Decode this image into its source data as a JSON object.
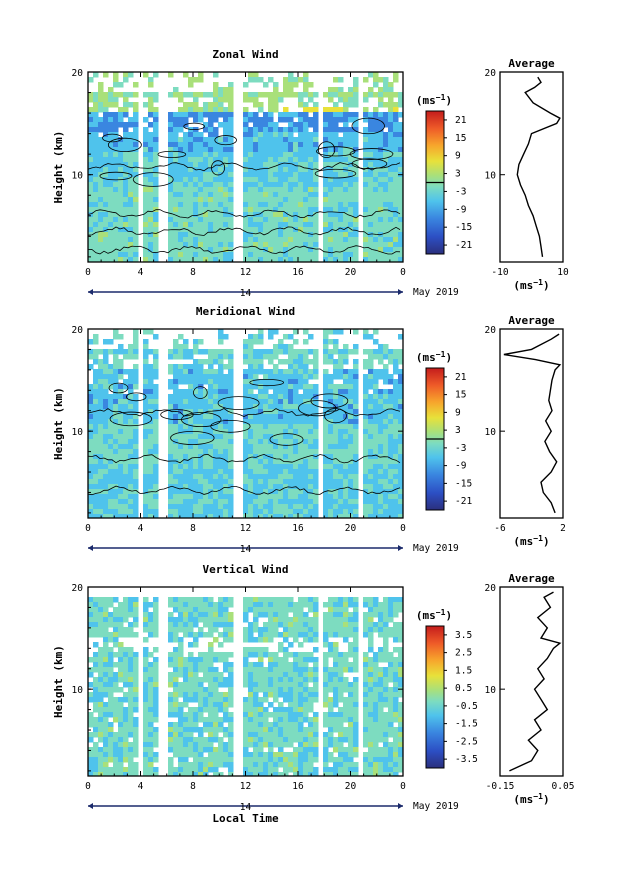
{
  "chart_data": [
    {
      "type": "heatmap",
      "title": "Zonal Wind",
      "ylabel": "Height (km)",
      "x_ticks": [
        "0",
        "4",
        "8",
        "12",
        "16",
        "20",
        "0"
      ],
      "y_ticks": [
        "20",
        "10"
      ],
      "xlim": [
        0,
        24
      ],
      "ylim": [
        1.5,
        20
      ],
      "date_day": "14",
      "date_label": "May 2019",
      "colorbar": {
        "unit": "(ms",
        "unit_exp": "−1",
        "unit_close": ")",
        "min": -24,
        "max": 24,
        "tick_labels": [
          "21",
          "15",
          "9",
          "3",
          "-3",
          "-9",
          "-15",
          "-21"
        ],
        "contour_level": 0
      },
      "data_gaps_local_time": [
        [
          3.7,
          4.0
        ],
        [
          5.2,
          5.9
        ],
        [
          11.0,
          11.5
        ],
        [
          17.5,
          17.8
        ],
        [
          20.3,
          20.6
        ]
      ],
      "average_profile": {
        "title": "Average",
        "x_ticks": [
          "-10",
          "10"
        ],
        "xlim": [
          -10,
          10
        ],
        "xlabel": "(ms",
        "xlabel_exp": "−1",
        "xlabel_close": ")",
        "y_ticks": [
          "20",
          "10"
        ],
        "ylim": [
          1.5,
          20
        ],
        "height": [
          2,
          3,
          4,
          5,
          6,
          7,
          8,
          9,
          10,
          11,
          12,
          13,
          14,
          15,
          15.5,
          16,
          17,
          18,
          18.5,
          19,
          19.5
        ],
        "wind": [
          3.5,
          3,
          2.5,
          1.5,
          0.5,
          -1,
          -2,
          -3.5,
          -4.5,
          -4,
          -2.5,
          -1,
          0,
          8,
          9,
          6,
          0.5,
          -2,
          1,
          3,
          2
        ]
      }
    },
    {
      "type": "heatmap",
      "title": "Meridional Wind",
      "ylabel": "Height (km)",
      "x_ticks": [
        "0",
        "4",
        "8",
        "12",
        "16",
        "20",
        "0"
      ],
      "y_ticks": [
        "20",
        "10"
      ],
      "xlim": [
        0,
        24
      ],
      "ylim": [
        1.5,
        20
      ],
      "date_day": "14",
      "date_label": "May 2019",
      "colorbar": {
        "unit": "(ms",
        "unit_exp": "−1",
        "unit_close": ")",
        "min": -24,
        "max": 24,
        "tick_labels": [
          "21",
          "15",
          "9",
          "3",
          "-3",
          "-9",
          "-15",
          "-21"
        ],
        "contour_level": 0
      },
      "data_gaps_local_time": [
        [
          3.7,
          4.0
        ],
        [
          5.2,
          5.9
        ],
        [
          11.0,
          11.5
        ],
        [
          17.5,
          17.8
        ],
        [
          20.3,
          20.6
        ]
      ],
      "average_profile": {
        "title": "Average",
        "x_ticks": [
          "-6",
          "2"
        ],
        "xlim": [
          -6,
          2
        ],
        "xlabel": "(ms",
        "xlabel_exp": "−1",
        "xlabel_close": ")",
        "y_ticks": [
          "20",
          "10"
        ],
        "ylim": [
          1.5,
          20
        ],
        "height": [
          2,
          3,
          4,
          5,
          6,
          7,
          8,
          9,
          10,
          11,
          12,
          13,
          14,
          15,
          16,
          16.5,
          17,
          17.5,
          18,
          19,
          19.5
        ],
        "wind": [
          1.0,
          0.5,
          -0.5,
          -0.8,
          0.5,
          1.2,
          0.3,
          -0.3,
          0.5,
          -0.2,
          0.6,
          0.2,
          0.4,
          0.6,
          1.0,
          1.6,
          -1.5,
          -5.5,
          -2,
          0.5,
          1.5
        ]
      }
    },
    {
      "type": "heatmap",
      "title": "Vertical Wind",
      "ylabel": "Height (km)",
      "xlabel": "Local Time",
      "x_ticks": [
        "0",
        "4",
        "8",
        "12",
        "16",
        "20",
        "0"
      ],
      "y_ticks": [
        "20",
        "10"
      ],
      "xlim": [
        0,
        24
      ],
      "ylim": [
        1.5,
        20
      ],
      "date_day": "14",
      "date_label": "May 2019",
      "colorbar": {
        "unit": "(ms",
        "unit_exp": "−1",
        "unit_close": ")",
        "min": -4,
        "max": 4,
        "tick_labels": [
          "3.5",
          "2.5",
          "1.5",
          "0.5",
          "-0.5",
          "-1.5",
          "-2.5",
          "-3.5"
        ]
      },
      "data_gaps_local_time": [
        [
          3.7,
          4.0
        ],
        [
          5.2,
          5.9
        ],
        [
          11.0,
          11.5
        ],
        [
          17.5,
          17.8
        ],
        [
          20.3,
          20.6
        ]
      ],
      "average_profile": {
        "title": "Average",
        "x_ticks": [
          "-0.15",
          "0.05"
        ],
        "xlim": [
          -0.15,
          0.05
        ],
        "xlabel": "(ms",
        "xlabel_exp": "−1",
        "xlabel_close": ")",
        "y_ticks": [
          "20",
          "10"
        ],
        "ylim": [
          1.5,
          20
        ],
        "height": [
          2,
          3,
          4,
          5,
          6,
          7,
          8,
          9,
          10,
          11,
          12,
          13,
          14,
          14.5,
          15,
          16,
          17,
          18,
          19,
          19.5
        ],
        "wind": [
          -0.12,
          -0.05,
          -0.03,
          -0.06,
          -0.02,
          -0.04,
          0.0,
          -0.02,
          -0.04,
          -0.01,
          -0.03,
          0.0,
          0.02,
          0.04,
          -0.02,
          0.0,
          -0.03,
          0.01,
          -0.01,
          0.02
        ]
      }
    }
  ]
}
